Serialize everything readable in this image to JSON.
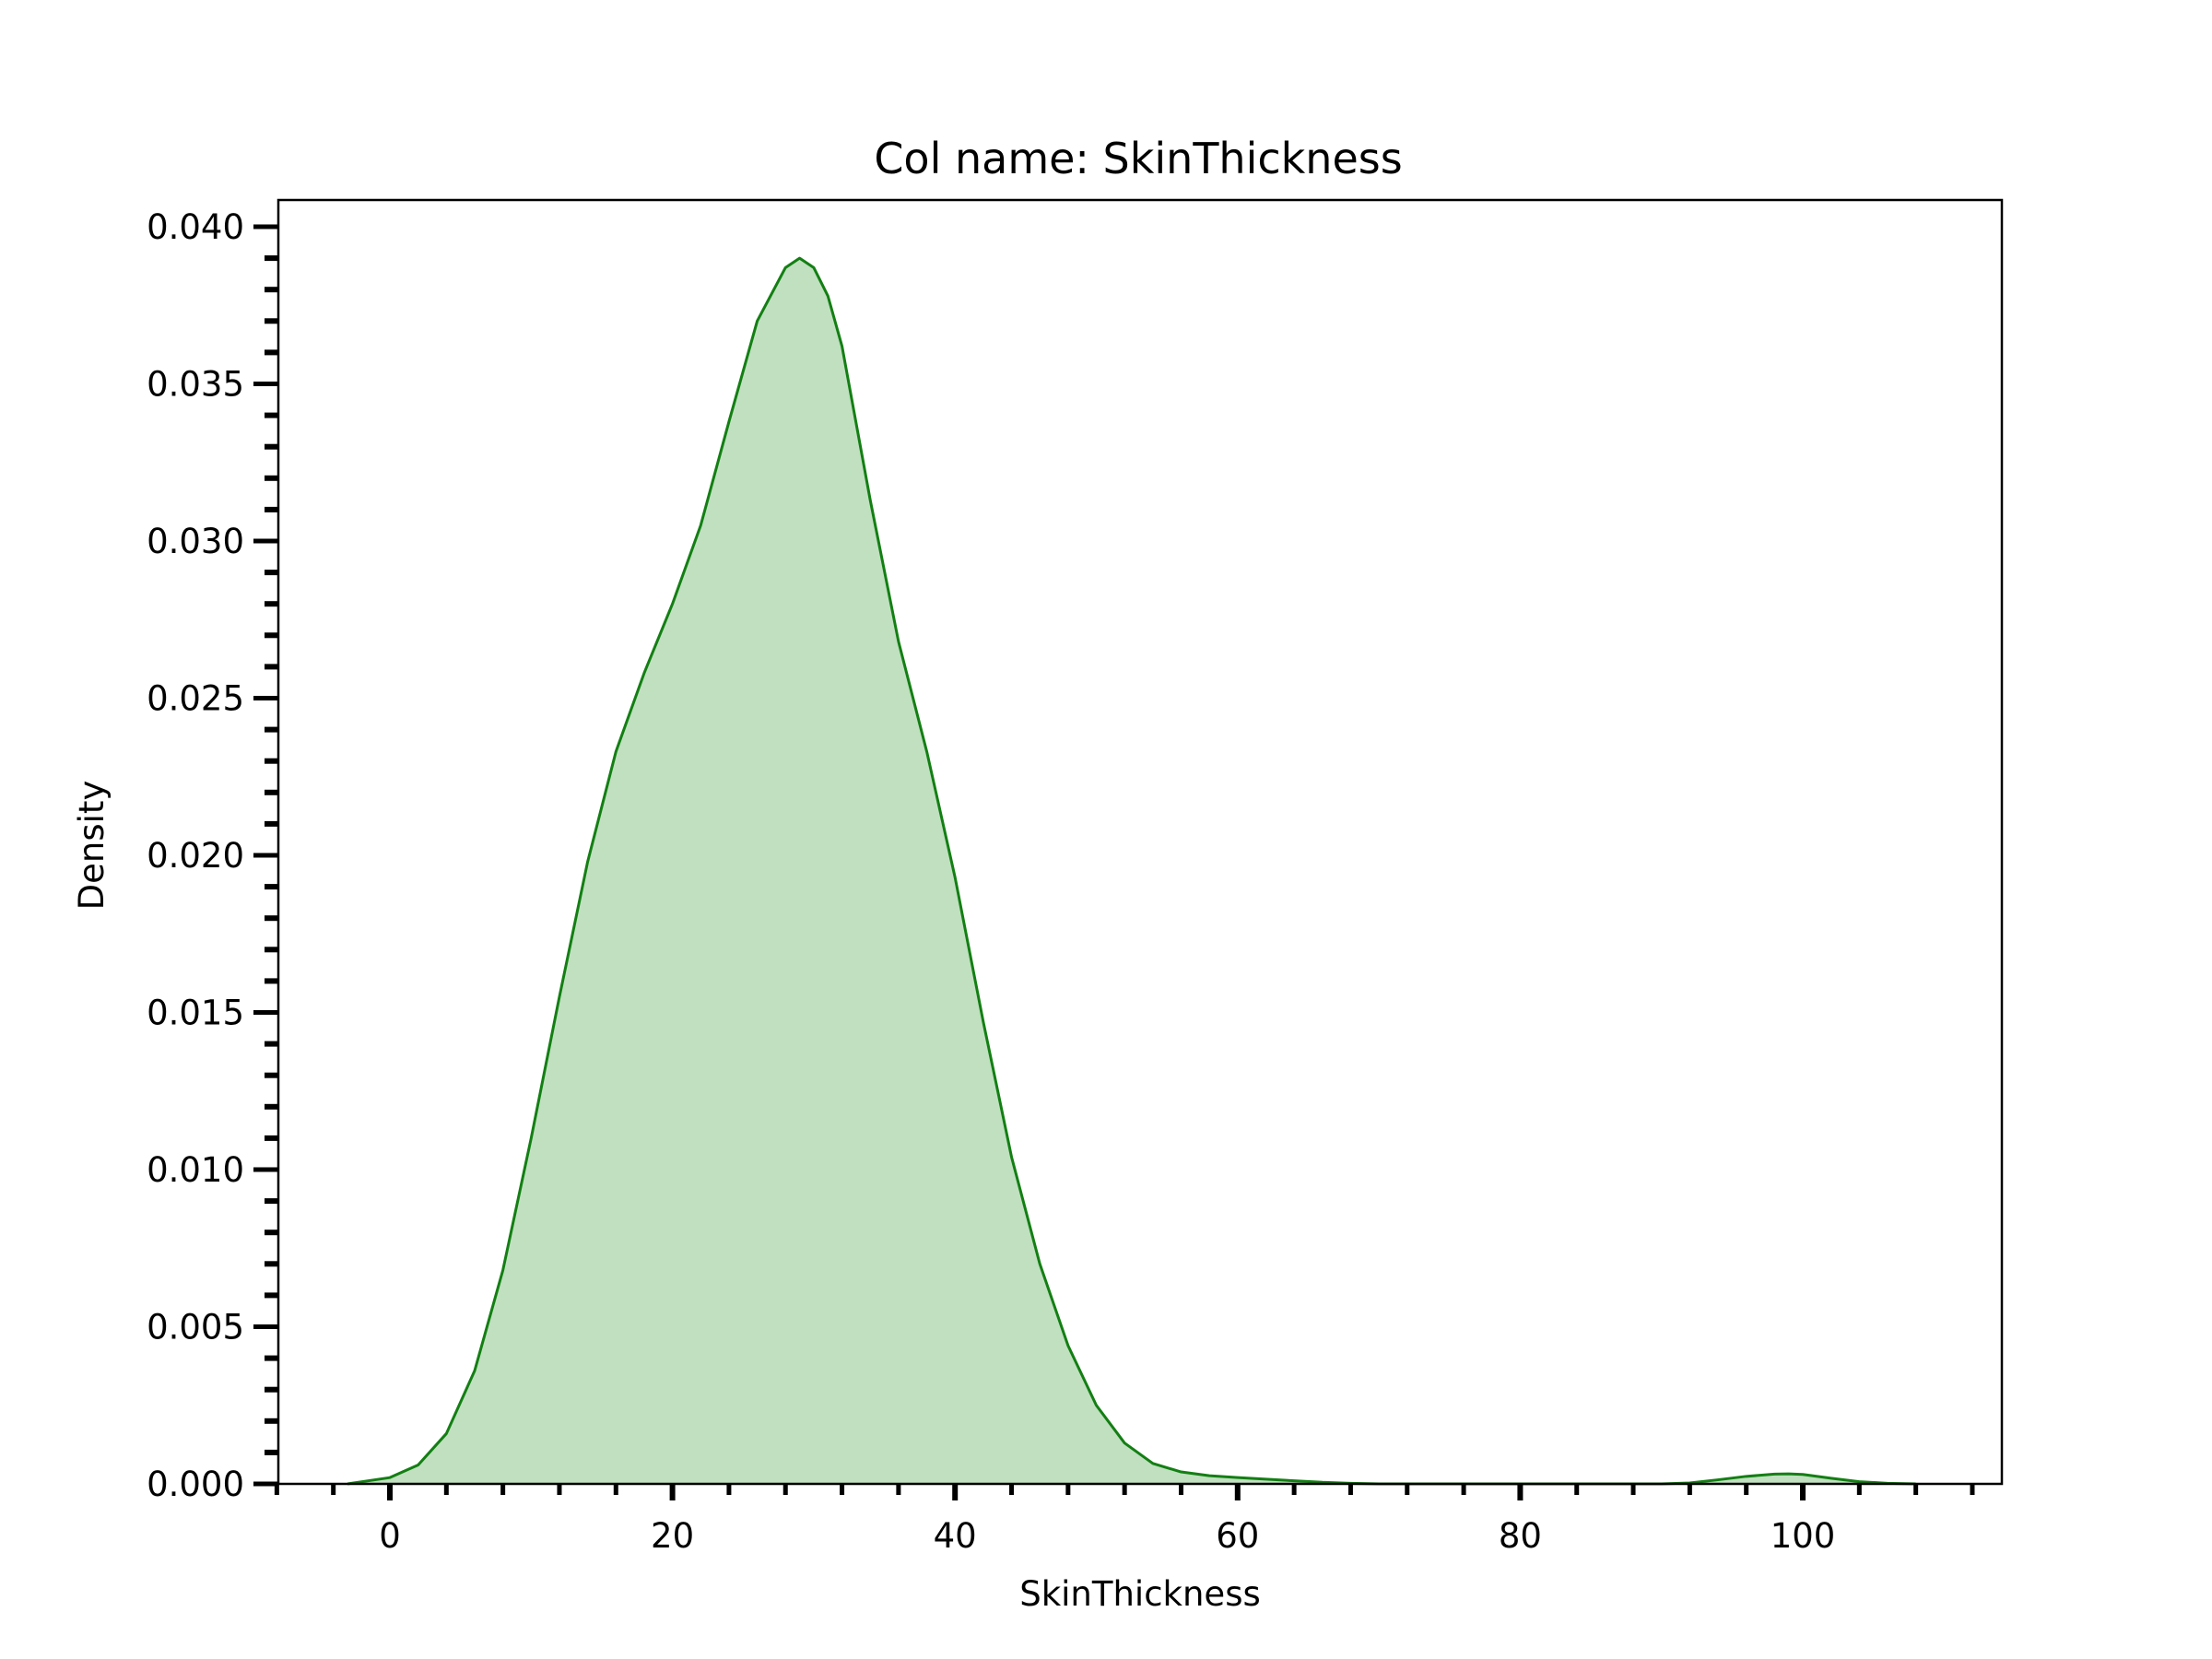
{
  "chart_data": {
    "type": "area",
    "title": "Col name: SkinThickness",
    "xlabel": "SkinThickness",
    "ylabel": "Density",
    "xlim": [
      -8,
      114
    ],
    "ylim": [
      0,
      0.041
    ],
    "x_ticks": [
      0,
      20,
      40,
      60,
      80,
      100
    ],
    "x_tick_labels": [
      "0",
      "20",
      "40",
      "60",
      "80",
      "100"
    ],
    "x_minor_step": 4,
    "y_ticks": [
      0,
      0.005,
      0.01,
      0.015,
      0.02,
      0.025,
      0.03,
      0.035,
      0.04
    ],
    "y_tick_labels": [
      "0.000",
      "0.005",
      "0.010",
      "0.015",
      "0.020",
      "0.025",
      "0.030",
      "0.035",
      "0.040"
    ],
    "y_minor_step": 0.001,
    "grid": false,
    "colors": {
      "line": "#137f13",
      "fill": "#c0e0c0",
      "axes": "#000000"
    },
    "series": [
      {
        "x": [
          -3,
          0,
          2,
          4,
          6,
          8,
          10,
          12,
          14,
          16,
          18,
          20,
          22,
          24,
          26,
          28,
          29,
          30,
          31,
          32,
          34,
          36,
          38,
          40,
          42,
          44,
          46,
          48,
          50,
          52,
          54,
          56,
          58,
          60,
          62,
          64,
          66,
          68,
          70,
          75,
          80,
          85,
          90,
          92,
          94,
          96,
          98,
          99,
          100,
          102,
          104,
          106,
          108
        ],
        "y": [
          0.0,
          0.0002,
          0.0006,
          0.0016,
          0.0036,
          0.0068,
          0.011,
          0.0155,
          0.0198,
          0.0233,
          0.0258,
          0.028,
          0.0305,
          0.0338,
          0.037,
          0.0387,
          0.039,
          0.0387,
          0.0378,
          0.0362,
          0.0313,
          0.0268,
          0.0233,
          0.0193,
          0.0147,
          0.0104,
          0.007,
          0.0044,
          0.0025,
          0.0013,
          0.00065,
          0.00038,
          0.00026,
          0.0002,
          0.00015,
          0.0001,
          5e-05,
          2e-05,
          0.0,
          0.0,
          0.0,
          0.0,
          0.0,
          3e-05,
          0.00013,
          0.00024,
          0.00031,
          0.00032,
          0.0003,
          0.00018,
          7e-05,
          2e-05,
          0.0
        ]
      }
    ]
  }
}
